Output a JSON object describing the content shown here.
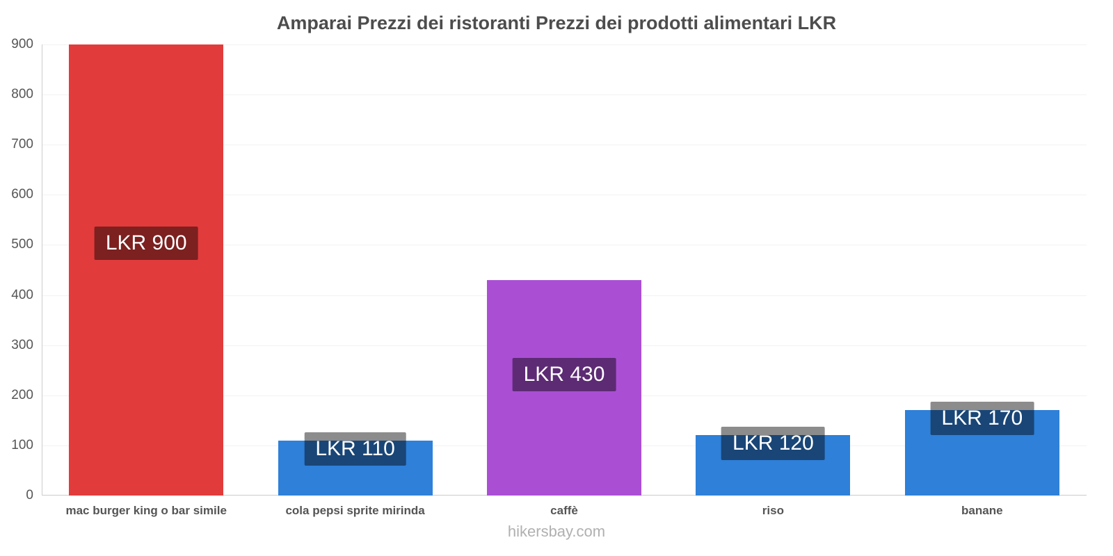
{
  "header": {
    "title": "Amparai Prezzi dei ristoranti Prezzi dei prodotti alimentari LKR"
  },
  "footer": {
    "watermark": "hikersbay.com"
  },
  "chart_data": {
    "type": "bar",
    "title": "Amparai Prezzi dei ristoranti Prezzi dei prodotti alimentari LKR",
    "categories": [
      "mac burger king o bar simile",
      "cola pepsi sprite mirinda",
      "caffè",
      "riso",
      "banane"
    ],
    "values": [
      900,
      110,
      430,
      120,
      170
    ],
    "data_labels": [
      "LKR 900",
      "LKR 110",
      "LKR 430",
      "LKR 120",
      "LKR 170"
    ],
    "bar_colors": [
      "#e23b3b",
      "#2e80d9",
      "#aa4fd4",
      "#2e80d9",
      "#2e80d9"
    ],
    "label_bg": "rgba(0,0,0,0.45)",
    "xlabel": "",
    "ylabel": "",
    "ylim": [
      0,
      900
    ],
    "yticks": [
      0,
      100,
      200,
      300,
      400,
      500,
      600,
      700,
      800,
      900
    ],
    "grid": "horizontal-faint",
    "legend": "none",
    "currency": "LKR"
  }
}
